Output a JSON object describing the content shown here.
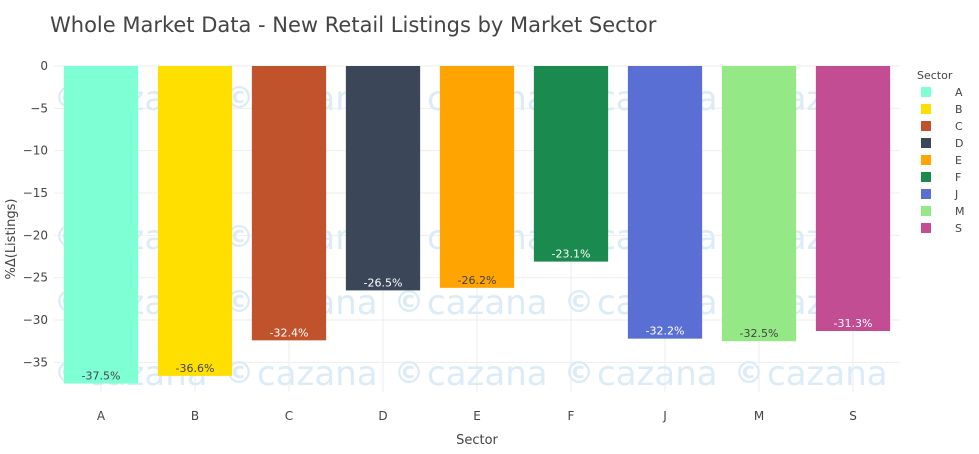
{
  "chart_data": {
    "type": "bar",
    "title": "Whole Market Data - New Retail Listings by Market Sector",
    "xlabel": "Sector",
    "ylabel": "%Δ(Listings)",
    "categories": [
      "A",
      "B",
      "C",
      "D",
      "E",
      "F",
      "J",
      "M",
      "S"
    ],
    "values": [
      -37.5,
      -36.6,
      -32.4,
      -26.5,
      -26.2,
      -23.1,
      -32.2,
      -32.5,
      -31.3
    ],
    "labels": [
      "-37.5%",
      "-36.6%",
      "-32.4%",
      "-26.5%",
      "-26.2%",
      "-23.1%",
      "-32.2%",
      "-32.5%",
      "-31.3%"
    ],
    "colors": [
      "#7fffd4",
      "#ffdf00",
      "#c0532c",
      "#3b4759",
      "#ffa400",
      "#1a8a4e",
      "#5a6fd3",
      "#94e886",
      "#c24d92"
    ],
    "label_colors": [
      "#444444",
      "#444444",
      "#ffffff",
      "#ffffff",
      "#444444",
      "#ffffff",
      "#ffffff",
      "#444444",
      "#ffffff"
    ],
    "ylim": [
      -38.5,
      0
    ],
    "yticks": [
      0,
      -5,
      -10,
      -15,
      -20,
      -25,
      -30,
      -35
    ],
    "ytick_labels": [
      "0",
      "−5",
      "−10",
      "−15",
      "−20",
      "−25",
      "−30",
      "−35"
    ],
    "grid": true,
    "legend": {
      "title": "Sector",
      "placement": "right",
      "entries": [
        "A",
        "B",
        "C",
        "D",
        "E",
        "F",
        "J",
        "M",
        "S"
      ]
    },
    "watermark": {
      "text": "cazana",
      "color": "#dcecf7"
    }
  }
}
